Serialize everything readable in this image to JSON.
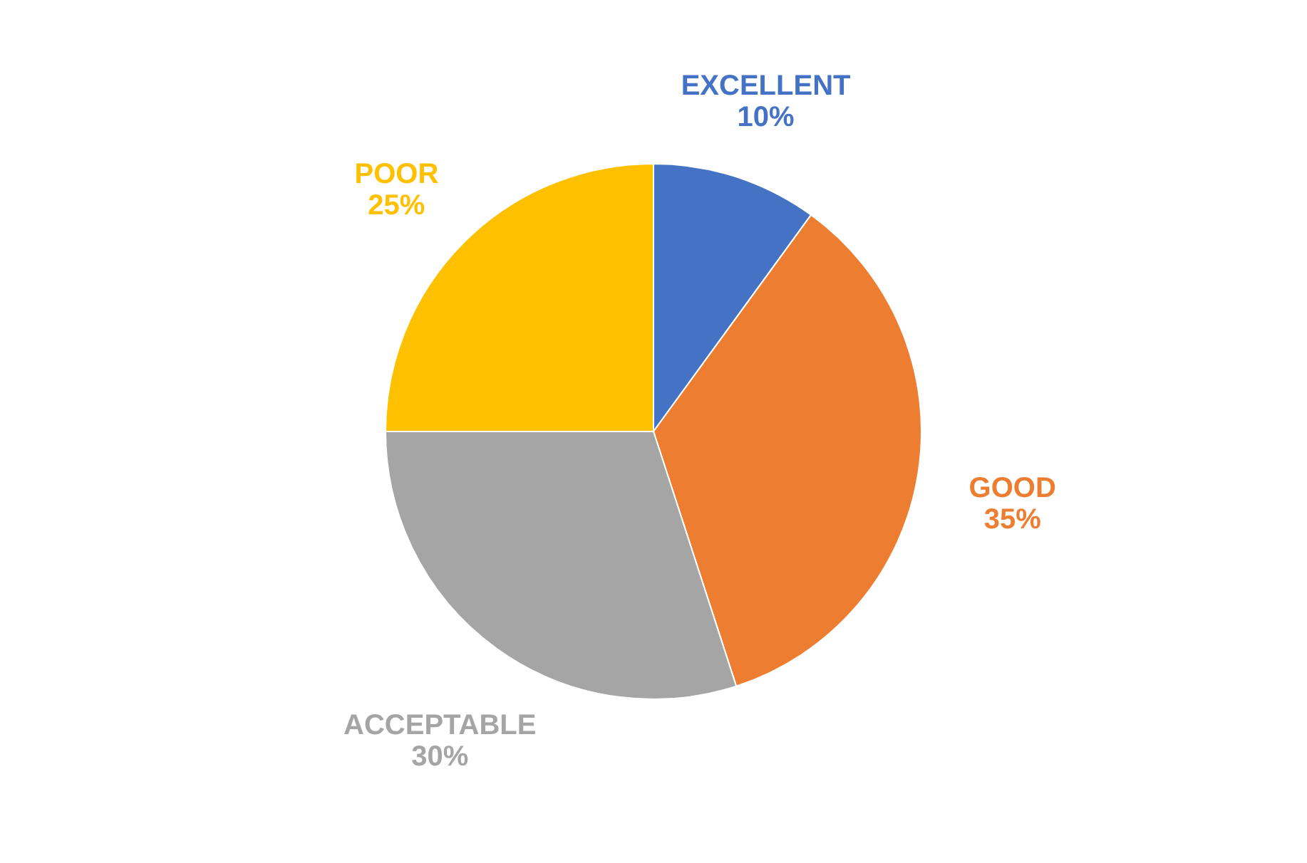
{
  "chart_data": {
    "type": "pie",
    "categories": [
      "EXCELLENT",
      "GOOD",
      "ACCEPTABLE",
      "POOR"
    ],
    "values": [
      10,
      35,
      30,
      25
    ],
    "value_labels": [
      "10%",
      "35%",
      "30%",
      "25%"
    ],
    "colors": [
      "#4472c4",
      "#ed7d31",
      "#a5a5a5",
      "#ffc000"
    ]
  }
}
